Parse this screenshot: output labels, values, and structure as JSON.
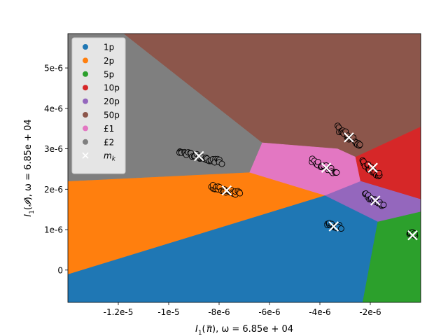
{
  "chart_data": {
    "type": "scatter",
    "title": "",
    "xlabel": "$I_1(\\tilde{\\pi})$, $\\omega = 6.85e+04$",
    "ylabel": "$I_1(\\mathcal{I})$, $\\omega = 6.85e+04$",
    "xlabel_parts": {
      "main": "I",
      "sub": "1",
      "open": "(",
      "sym": "π",
      "accent": "~",
      "close": ")",
      "rest": ", ω = 6.85e + 04"
    },
    "ylabel_parts": {
      "main": "I",
      "sub": "1",
      "open": "(",
      "sym": "𝓘",
      "close": ")",
      "rest": ", ω = 6.85e + 04"
    },
    "xlim": [
      -1.4e-05,
      0.0
    ],
    "ylim": [
      -8e-07,
      5.85e-06
    ],
    "x_ticks": [
      {
        "value": -1.2e-05,
        "label": "-1.2e-5"
      },
      {
        "value": -1e-05,
        "label": "-1e-5"
      },
      {
        "value": -8e-06,
        "label": "-8e-6"
      },
      {
        "value": -6e-06,
        "label": "-6e-6"
      },
      {
        "value": -4e-06,
        "label": "-4e-6"
      },
      {
        "value": -2e-06,
        "label": "-2e-6"
      }
    ],
    "y_ticks": [
      {
        "value": 0,
        "label": "0"
      },
      {
        "value": 1e-06,
        "label": "1e-6"
      },
      {
        "value": 2e-06,
        "label": "2e-6"
      },
      {
        "value": 3e-06,
        "label": "3e-6"
      },
      {
        "value": 4e-06,
        "label": "4e-6"
      },
      {
        "value": 5e-06,
        "label": "5e-6"
      }
    ],
    "grid": false,
    "legend_position": "top-left",
    "regions": [
      {
        "name": "1p",
        "color": "#1f77b4",
        "polygon": [
          [
            -1.4e-05,
            -8e-07
          ],
          [
            -1.4e-05,
            -1e-07
          ],
          [
            -3.8e-06,
            1.85e-06
          ],
          [
            -2.4e-06,
            2.2e-06
          ],
          [
            -4e-07,
            3.1e-06
          ],
          [
            -2.3e-06,
            -8e-07
          ]
        ]
      },
      {
        "name": "2p",
        "color": "#ff7f0e",
        "polygon": [
          [
            -1.4e-05,
            -1e-07
          ],
          [
            -1.4e-05,
            2.2e-06
          ],
          [
            -6.8e-06,
            2.42e-06
          ],
          [
            -3.8e-06,
            1.85e-06
          ]
        ]
      },
      {
        "name": "5p",
        "color": "#2ca02c",
        "polygon": [
          [
            -2.3e-06,
            -8e-07
          ],
          [
            -1.7e-06,
            1.2e-06
          ],
          [
            0.0,
            1.45e-06
          ],
          [
            0.0,
            -8e-07
          ]
        ]
      },
      {
        "name": "10p",
        "color": "#d62728",
        "polygon": [
          [
            -2.6e-06,
            2.8e-06
          ],
          [
            -2.4e-06,
            2.2e-06
          ],
          [
            0.0,
            1.75e-06
          ],
          [
            0.0,
            3.55e-06
          ]
        ]
      },
      {
        "name": "20p",
        "color": "#9467bd",
        "polygon": [
          [
            -3.8e-06,
            1.85e-06
          ],
          [
            -2.4e-06,
            2.2e-06
          ],
          [
            0.0,
            1.75e-06
          ],
          [
            0.0,
            1.45e-06
          ],
          [
            -1.7e-06,
            1.2e-06
          ]
        ]
      },
      {
        "name": "50p",
        "color": "#8c564b",
        "polygon": [
          [
            -1.18e-05,
            5.85e-06
          ],
          [
            0.0,
            5.85e-06
          ],
          [
            0.0,
            3.55e-06
          ],
          [
            -2.6e-06,
            2.8e-06
          ],
          [
            -3.3e-06,
            3e-06
          ],
          [
            -6.3e-06,
            3.15e-06
          ]
        ]
      },
      {
        "name": "£1",
        "color": "#e377c2",
        "polygon": [
          [
            -6.3e-06,
            3.15e-06
          ],
          [
            -3.3e-06,
            3e-06
          ],
          [
            -2.6e-06,
            2.8e-06
          ],
          [
            -2.4e-06,
            2.2e-06
          ],
          [
            -3.8e-06,
            1.85e-06
          ],
          [
            -6.8e-06,
            2.42e-06
          ]
        ]
      },
      {
        "name": "£2",
        "color": "#7f7f7f",
        "polygon": [
          [
            -1.4e-05,
            5.85e-06
          ],
          [
            -1.18e-05,
            5.85e-06
          ],
          [
            -6.3e-06,
            3.15e-06
          ],
          [
            -6.8e-06,
            2.42e-06
          ],
          [
            -1.4e-05,
            2.2e-06
          ]
        ]
      }
    ],
    "clusters": [
      {
        "name": "1p",
        "color": "#1f77b4",
        "x_range": [
          -3.7e-06,
          -3.2e-06
        ],
        "y_center": 1.1e-06,
        "slope": -0.15,
        "spread": 5e-08,
        "count": 14
      },
      {
        "name": "2p",
        "color": "#ff7f0e",
        "x_range": [
          -8.3e-06,
          -7.2e-06
        ],
        "y_center": 1.97e-06,
        "slope": -0.15,
        "spread": 6e-08,
        "count": 26
      },
      {
        "name": "5p",
        "color": "#2ca02c",
        "x_range": [
          -4.5e-07,
          -2e-07
        ],
        "y_center": 8.9e-07,
        "slope": -0.4,
        "spread": 5e-08,
        "count": 8
      },
      {
        "name": "10p",
        "color": "#d62728",
        "x_range": [
          -2.3e-06,
          -1.6e-06
        ],
        "y_center": 2.5e-06,
        "slope": -0.45,
        "spread": 7e-08,
        "count": 22
      },
      {
        "name": "20p",
        "color": "#9467bd",
        "x_range": [
          -2.2e-06,
          -1.5e-06
        ],
        "y_center": 1.72e-06,
        "slope": -0.4,
        "spread": 5e-08,
        "count": 18
      },
      {
        "name": "50p",
        "color": "#8c564b",
        "x_range": [
          -3.3e-06,
          -2.4e-06
        ],
        "y_center": 3.3e-06,
        "slope": -0.45,
        "spread": 7e-08,
        "count": 26
      },
      {
        "name": "£1",
        "color": "#e377c2",
        "x_range": [
          -4.3e-06,
          -3.3e-06
        ],
        "y_center": 2.55e-06,
        "slope": -0.35,
        "spread": 6e-08,
        "count": 24
      },
      {
        "name": "£2",
        "color": "#7f7f7f",
        "x_range": [
          -9.6e-06,
          -7.9e-06
        ],
        "y_center": 2.8e-06,
        "slope": -0.15,
        "spread": 5e-08,
        "count": 36
      }
    ],
    "centroids": [
      {
        "name": "1p",
        "x": -3.45e-06,
        "y": 1.08e-06
      },
      {
        "name": "2p",
        "x": -7.7e-06,
        "y": 1.97e-06
      },
      {
        "name": "5p",
        "x": -3.2e-07,
        "y": 8.6e-07
      },
      {
        "name": "10p",
        "x": -1.9e-06,
        "y": 2.53e-06
      },
      {
        "name": "20p",
        "x": -1.8e-06,
        "y": 1.72e-06
      },
      {
        "name": "50p",
        "x": -2.85e-06,
        "y": 3.28e-06
      },
      {
        "name": "£1",
        "x": -3.75e-06,
        "y": 2.53e-06
      },
      {
        "name": "£2",
        "x": -8.8e-06,
        "y": 2.82e-06
      }
    ],
    "legend": [
      {
        "label": "1p",
        "color": "#1f77b4",
        "marker": "dot"
      },
      {
        "label": "2p",
        "color": "#ff7f0e",
        "marker": "dot"
      },
      {
        "label": "5p",
        "color": "#2ca02c",
        "marker": "dot"
      },
      {
        "label": "10p",
        "color": "#d62728",
        "marker": "dot"
      },
      {
        "label": "20p",
        "color": "#9467bd",
        "marker": "dot"
      },
      {
        "label": "50p",
        "color": "#8c564b",
        "marker": "dot"
      },
      {
        "label": "£1",
        "color": "#e377c2",
        "marker": "dot"
      },
      {
        "label": "£2",
        "color": "#7f7f7f",
        "marker": "dot"
      },
      {
        "label": "m",
        "sub": "k",
        "color": "#ffffff",
        "marker": "x"
      }
    ],
    "colors": {
      "point_edge": "#000000",
      "centroid_marker": "#ffffff",
      "axes": "#000000",
      "legend_bg": "#ffffff",
      "legend_border": "#cccccc"
    }
  }
}
